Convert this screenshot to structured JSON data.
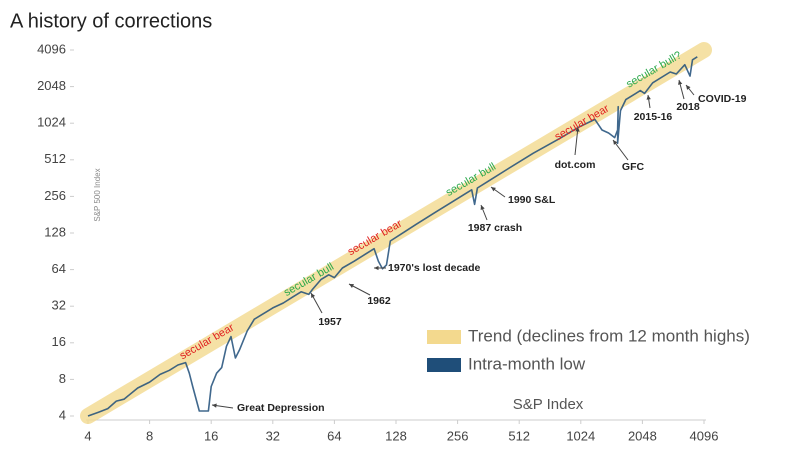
{
  "chart_data": {
    "type": "line",
    "title": "A history of corrections",
    "xlabel": "S&P Index",
    "ylabel": "S&P 500 Index",
    "log_scale": true,
    "grid": false,
    "legend": "lower right",
    "xlim": [
      4,
      4096
    ],
    "ylim": [
      4,
      4096
    ],
    "xticks": [
      4,
      8,
      16,
      32,
      64,
      128,
      256,
      512,
      1024,
      2048,
      4096
    ],
    "yticks": [
      4,
      8,
      16,
      32,
      64,
      128,
      256,
      512,
      1024,
      2048,
      4096
    ],
    "series": [
      {
        "name": "Trend (declines from 12 month highs)",
        "color": "#f3d98e",
        "x": [
          4,
          4096
        ],
        "values": [
          4,
          4096
        ]
      },
      {
        "name": "Intra-month low",
        "color": "#1f4e79",
        "x": [
          4,
          4.5,
          5,
          5.5,
          6,
          7,
          8,
          9,
          10,
          11,
          12,
          12.5,
          13,
          14,
          15.5,
          16,
          17,
          18,
          19,
          20,
          21,
          22,
          24,
          26,
          28,
          30,
          32,
          36,
          40,
          44,
          48,
          50,
          55,
          60,
          64,
          70,
          80,
          90,
          100,
          105,
          110,
          115,
          120,
          140,
          160,
          200,
          240,
          280,
          300,
          310,
          320,
          360,
          450,
          600,
          800,
          1000,
          1200,
          1300,
          1400,
          1500,
          1550,
          1560,
          1550,
          1600,
          1700,
          2000,
          2100,
          2300,
          2800,
          3000,
          3300,
          3500,
          3600,
          3800
        ],
        "values": [
          4,
          4.3,
          4.6,
          5.3,
          5.5,
          6.8,
          7.6,
          8.8,
          9.5,
          10.5,
          11,
          9,
          7,
          4.4,
          4.4,
          7,
          9,
          10,
          15,
          18,
          12,
          14,
          20,
          25,
          27,
          29,
          31,
          34,
          38,
          42,
          40,
          44,
          53,
          58,
          55,
          66,
          75,
          85,
          95,
          75,
          65,
          70,
          110,
          130,
          150,
          190,
          230,
          270,
          290,
          220,
          300,
          340,
          430,
          580,
          760,
          950,
          1100,
          900,
          850,
          780,
          900,
          1400,
          700,
          1300,
          1600,
          1900,
          1800,
          2200,
          2700,
          2600,
          3100,
          2500,
          3400,
          3600
        ]
      }
    ],
    "annotations": [
      {
        "text": "Great Depression"
      },
      {
        "text": "1957"
      },
      {
        "text": "1962"
      },
      {
        "text": "1970's lost decade"
      },
      {
        "text": "1987 crash"
      },
      {
        "text": "1990 S&L"
      },
      {
        "text": "dot.com"
      },
      {
        "text": "GFC"
      },
      {
        "text": "2015-16"
      },
      {
        "text": "2018"
      },
      {
        "text": "COVID-19"
      }
    ],
    "eras": [
      {
        "text": "secular bear",
        "color": "#e02020"
      },
      {
        "text": "secular bull",
        "color": "#2aa84a"
      },
      {
        "text": "secular bear",
        "color": "#e02020"
      },
      {
        "text": "secular bull",
        "color": "#2aa84a"
      },
      {
        "text": "secular bear",
        "color": "#e02020"
      },
      {
        "text": "secular bull?",
        "color": "#2aa84a"
      }
    ]
  }
}
